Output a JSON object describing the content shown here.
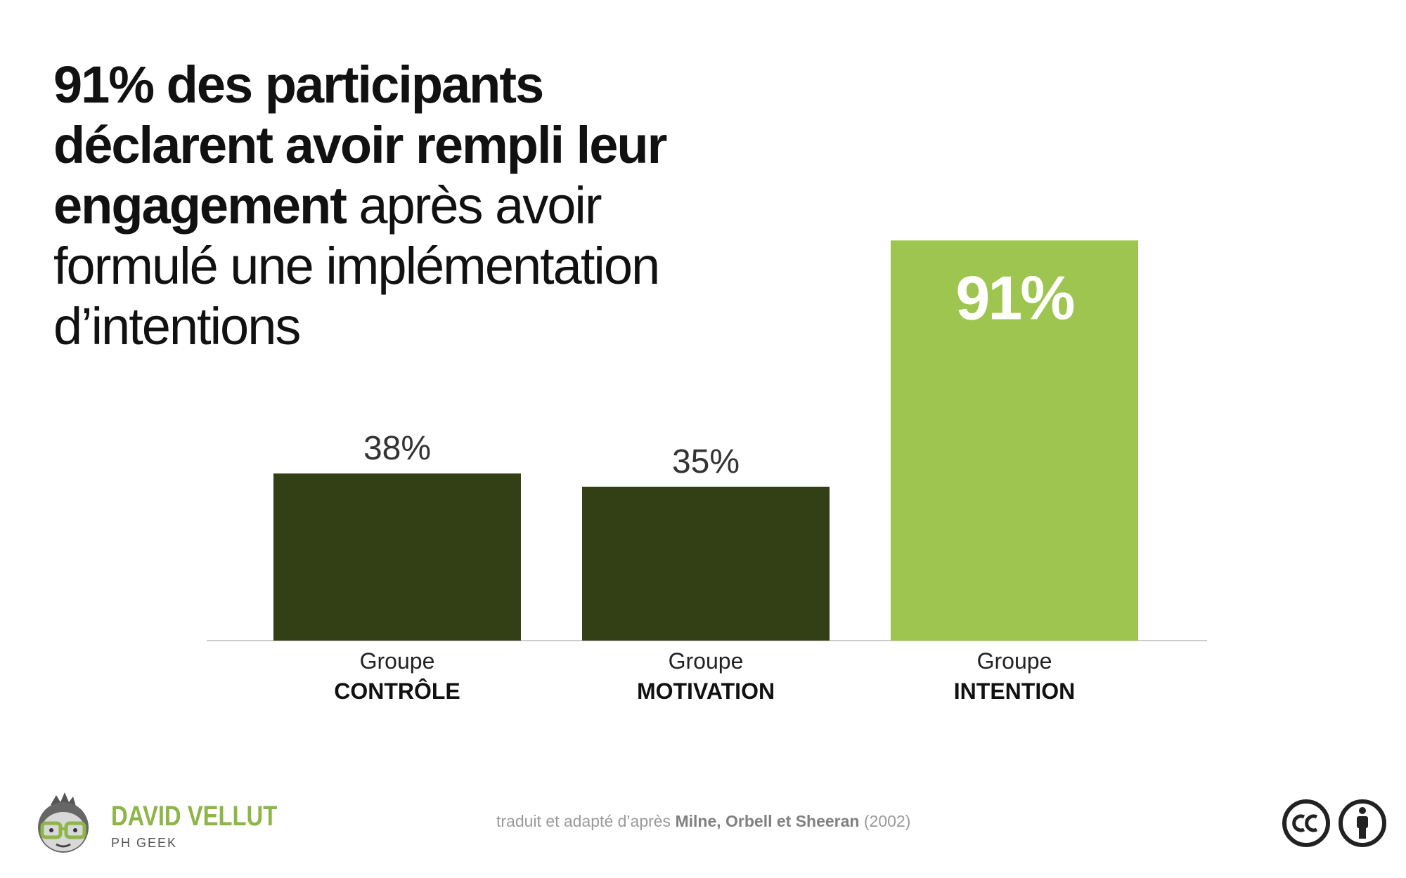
{
  "headline": {
    "bold_part": "91% des participants déclarent avoir rempli leur engagement",
    "regular_part": " après avoir formulé une implémentation d’intentions"
  },
  "chart_data": {
    "type": "bar",
    "categories": [
      "Groupe CONTRÔLE",
      "Groupe MOTIVATION",
      "Groupe INTENTION"
    ],
    "category_lines": [
      [
        "Groupe",
        "CONTRÔLE"
      ],
      [
        "Groupe",
        "MOTIVATION"
      ],
      [
        "Groupe",
        "INTENTION"
      ]
    ],
    "values": [
      38,
      35,
      91
    ],
    "data_labels": [
      "38%",
      "35%",
      "91%"
    ],
    "colors": [
      "#334016",
      "#334016",
      "#9ec54f"
    ],
    "ylim": [
      0,
      100
    ],
    "grid": false,
    "title": "",
    "xlabel": "",
    "ylabel": ""
  },
  "footer": {
    "brand_name": "DAVID VELLUT",
    "brand_sub": "PH GEEK",
    "source_prefix": "traduit et adapté d’après ",
    "source_authors": "Milne, Orbell et Sheeran",
    "source_year": " (2002)",
    "license_icons": [
      "cc-icon",
      "attribution-icon"
    ],
    "brand_color": "#8db646"
  }
}
